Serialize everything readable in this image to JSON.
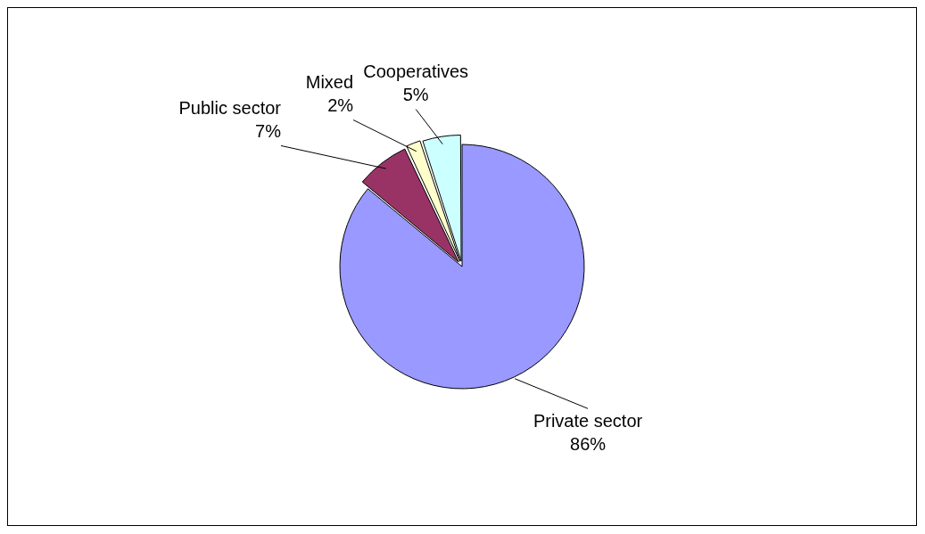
{
  "chart_data": {
    "type": "pie",
    "categories": [
      "Private sector",
      "Public sector",
      "Mixed",
      "Cooperatives"
    ],
    "values": [
      86,
      7,
      2,
      5
    ],
    "colors": [
      "#9999ff",
      "#993366",
      "#ffffcc",
      "#ccffff"
    ],
    "value_labels": [
      "86%",
      "7%",
      "2%",
      "5%"
    ],
    "legend": false
  }
}
